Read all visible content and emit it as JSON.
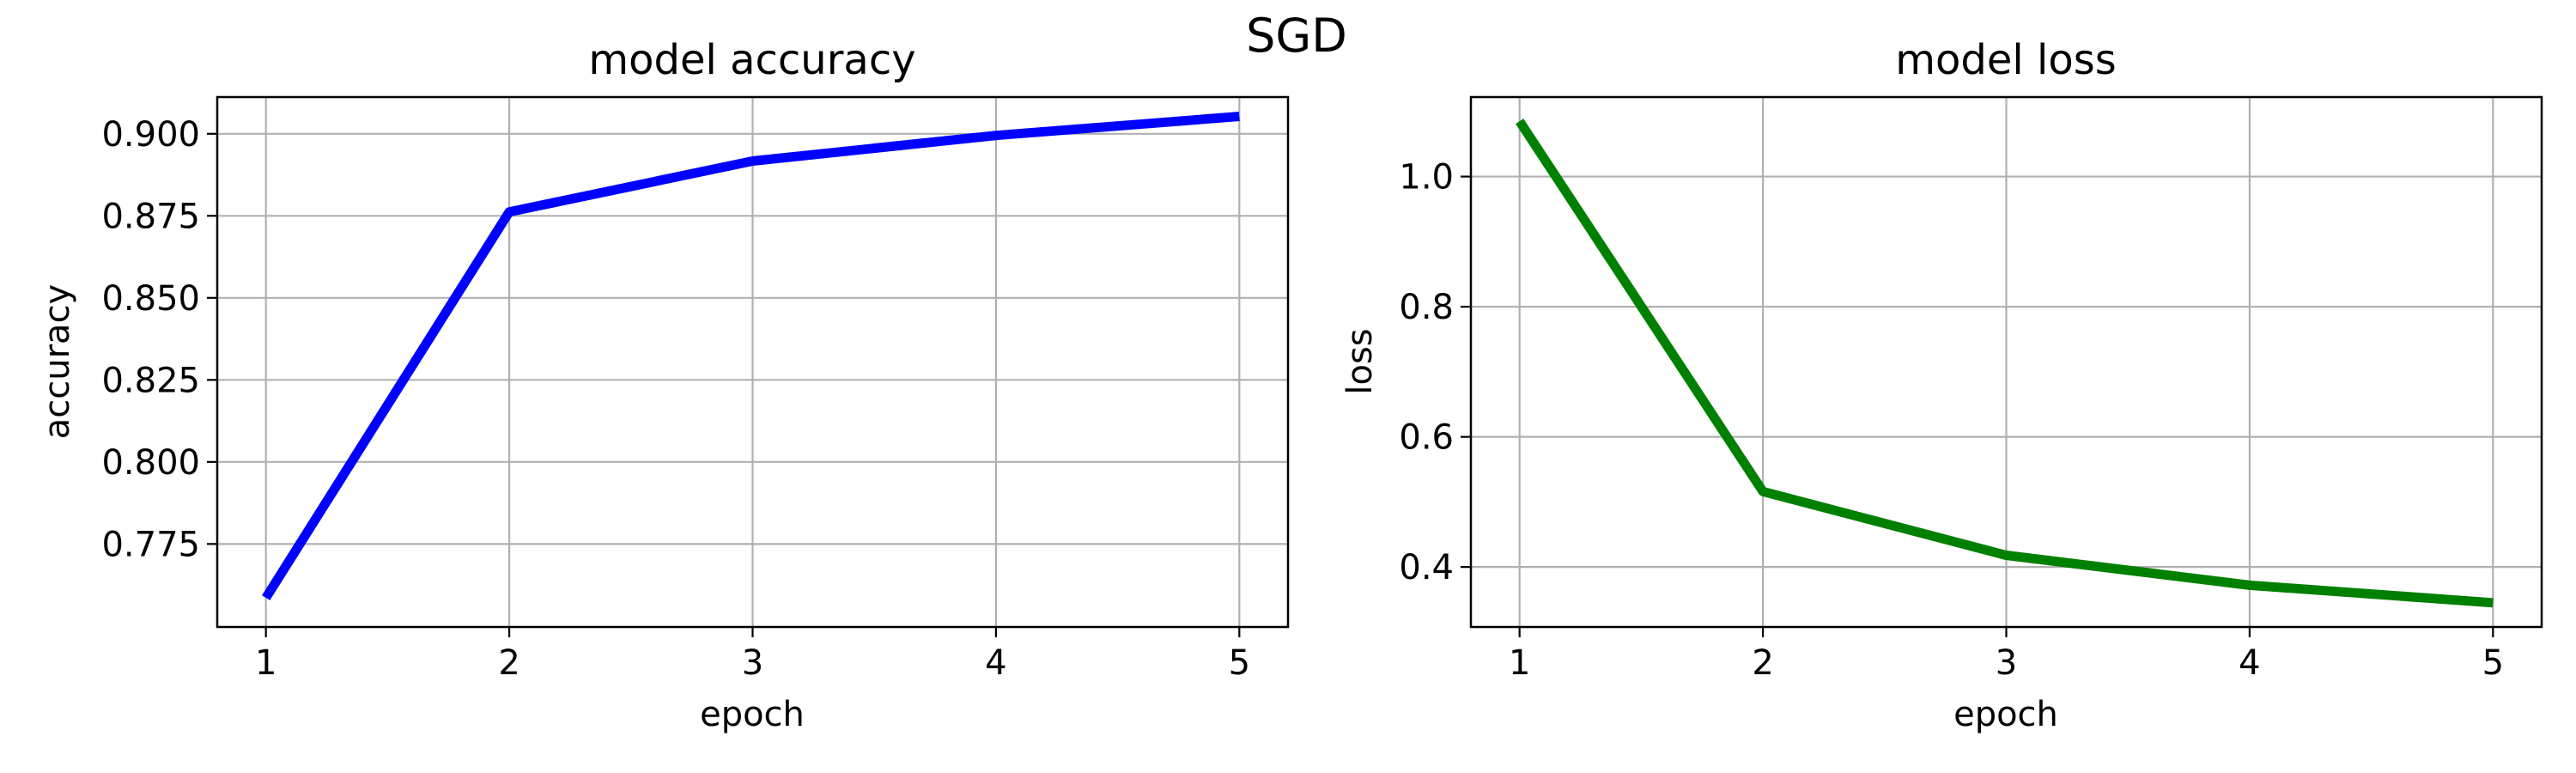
{
  "figure": {
    "suptitle": "SGD"
  },
  "chart_data": [
    {
      "type": "line",
      "title": "model accuracy",
      "xlabel": "epoch",
      "ylabel": "accuracy",
      "x": [
        1,
        2,
        3,
        4,
        5
      ],
      "series": [
        {
          "values": [
            0.7586,
            0.8762,
            0.8917,
            0.8995,
            0.9053
          ],
          "color": "#0000ff"
        }
      ],
      "xlim": [
        0.8,
        5.2
      ],
      "ylim": [
        0.7497,
        0.9112
      ],
      "xticks": [
        1,
        2,
        3,
        4,
        5
      ],
      "yticks": [
        0.775,
        0.8,
        0.825,
        0.85,
        0.875,
        0.9
      ],
      "ytick_labels": [
        "0.775",
        "0.800",
        "0.825",
        "0.850",
        "0.875",
        "0.900"
      ],
      "grid": true
    },
    {
      "type": "line",
      "title": "model loss",
      "xlabel": "epoch",
      "ylabel": "loss",
      "x": [
        1,
        2,
        3,
        4,
        5
      ],
      "series": [
        {
          "values": [
            1.085,
            0.516,
            0.418,
            0.372,
            0.345
          ],
          "color": "#008000"
        }
      ],
      "xlim": [
        0.8,
        5.2
      ],
      "ylim": [
        0.3078,
        1.1222
      ],
      "xticks": [
        1,
        2,
        3,
        4,
        5
      ],
      "yticks": [
        0.4,
        0.6,
        0.8,
        1.0
      ],
      "ytick_labels": [
        "0.4",
        "0.6",
        "0.8",
        "1.0"
      ],
      "grid": true
    }
  ]
}
